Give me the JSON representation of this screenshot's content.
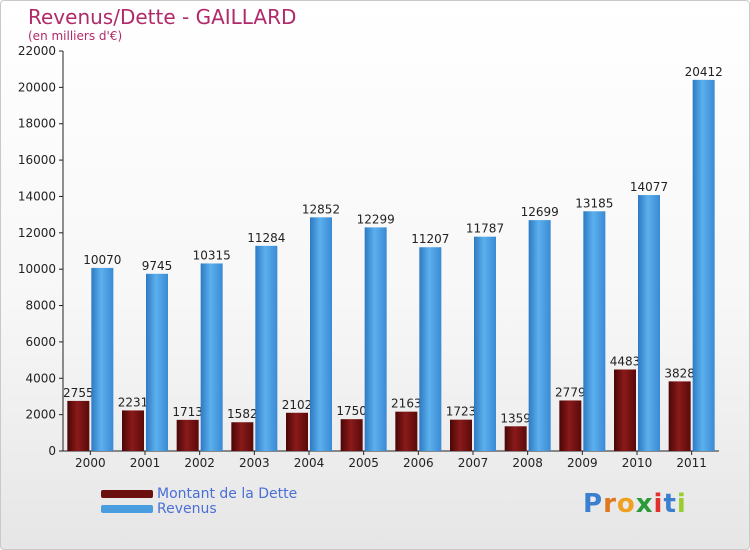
{
  "title": "Revenus/Dette - GAILLARD",
  "subtitle": "(en milliers d'€)",
  "chart_data": {
    "type": "bar",
    "categories": [
      "2000",
      "2001",
      "2002",
      "2003",
      "2004",
      "2005",
      "2006",
      "2007",
      "2008",
      "2009",
      "2010",
      "2011"
    ],
    "series": [
      {
        "name": "Montant de la Dette",
        "values": [
          2755,
          2231,
          1713,
          1582,
          2102,
          1750,
          2163,
          1723,
          1359,
          2779,
          4483,
          3828
        ],
        "color": "#7a1010"
      },
      {
        "name": "Revenus",
        "values": [
          10070,
          9745,
          10315,
          11284,
          12852,
          12299,
          11207,
          11787,
          12699,
          13185,
          14077,
          20412
        ],
        "color": "#4a9ee0"
      }
    ],
    "data_labels": {
      "Montant de la Dette": [
        "2755",
        "2231",
        "1713",
        "1582",
        "2102",
        "1750",
        "2163",
        "1723",
        "1359",
        "2779",
        "4483",
        "3828"
      ],
      "Revenus": [
        "10070",
        "9745",
        "10315",
        "11284",
        "12852",
        "12299",
        "11207",
        "11787",
        "12699",
        "13185",
        "14077",
        "20412"
      ]
    },
    "yticks": [
      0,
      2000,
      4000,
      6000,
      8000,
      10000,
      12000,
      14000,
      16000,
      18000,
      20000,
      22000
    ],
    "ylim": [
      0,
      22000
    ],
    "grid": false,
    "legend_position": "bottom-left"
  },
  "legend": {
    "debt_label": "Montant de la Dette",
    "revenue_label": "Revenus",
    "debt_color": "#6b0f0f",
    "revenue_color": "#4a9ee0"
  },
  "logo": {
    "text": "Proxiti",
    "letter_colors": [
      "#3a7fd0",
      "#e07820",
      "#f0a020",
      "#2a9a3a",
      "#e03030",
      "#3a7fd0",
      "#9acd32"
    ]
  }
}
